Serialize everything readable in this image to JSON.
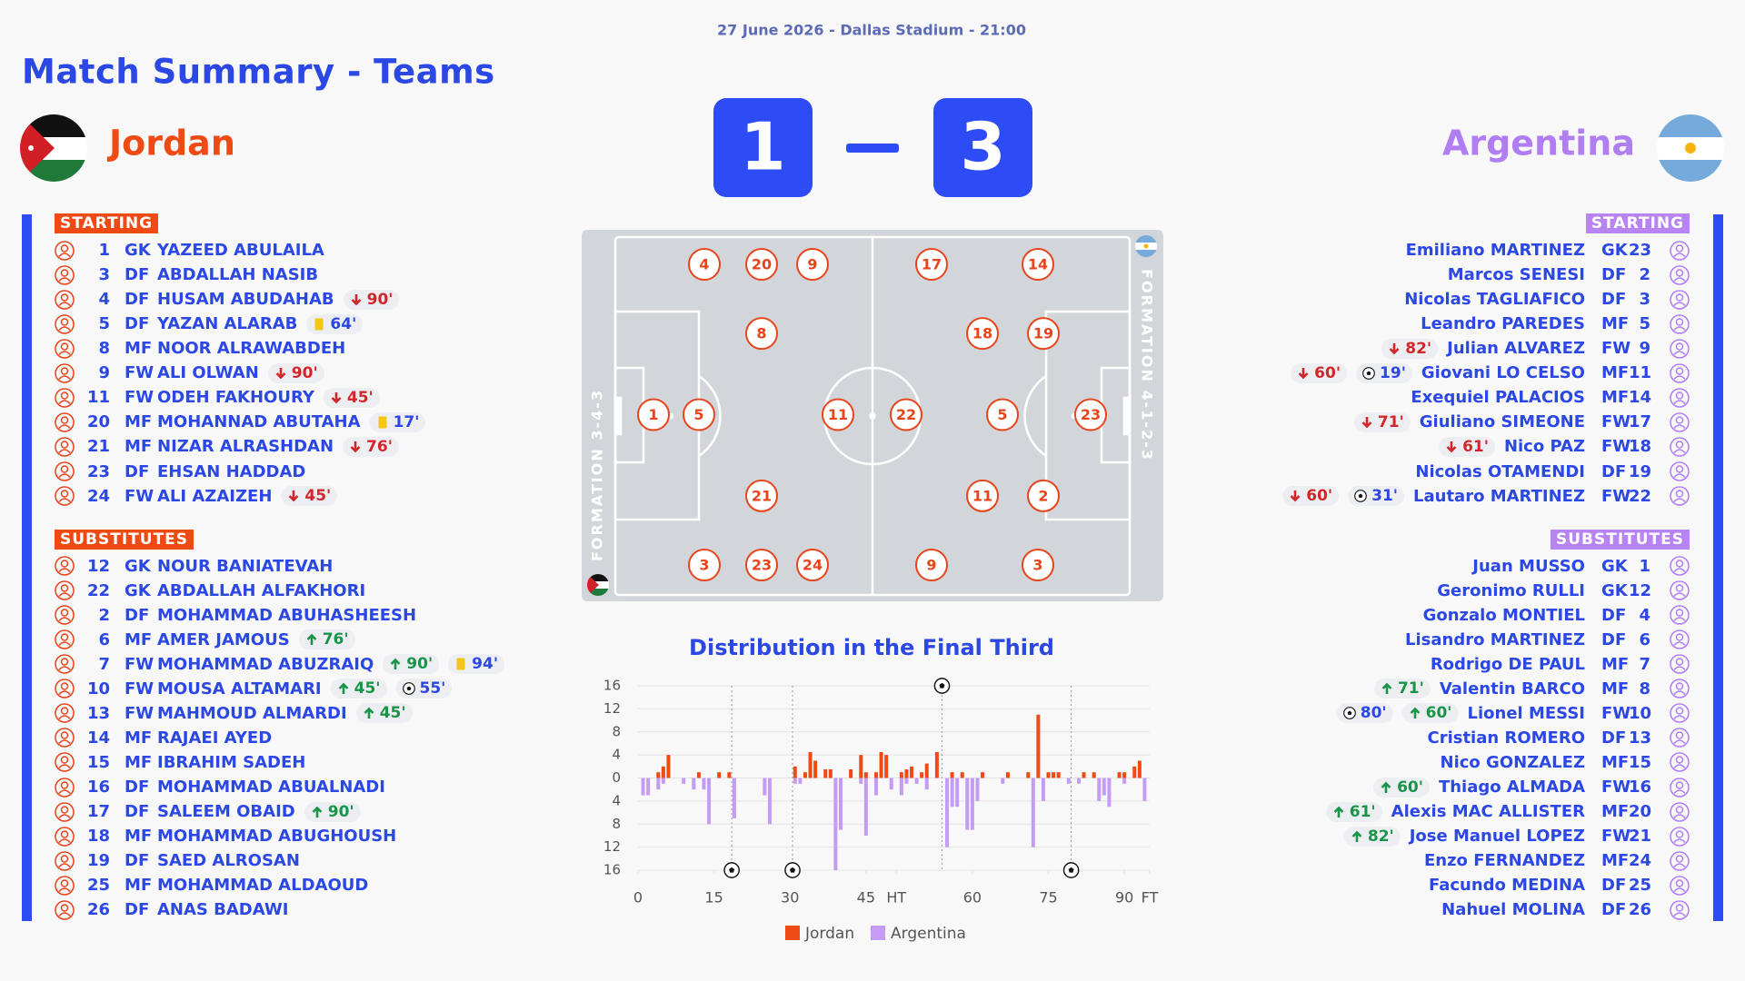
{
  "header": {
    "date_line": "27 June 2026 - Dallas Stadium - 21:00",
    "title": "Match Summary - Teams"
  },
  "home": {
    "name": "Jordan",
    "score": 1,
    "starting_label": "STARTING",
    "substitutes_label": "SUBSTITUTES",
    "formation": "FORMATION 3-4-3",
    "pitch_lines": [
      [
        1
      ],
      [
        4,
        5,
        3
      ],
      [
        20,
        8,
        21,
        23
      ],
      [
        9,
        11,
        24
      ]
    ],
    "starting": [
      {
        "number": 1,
        "pos": "GK",
        "name": "YAZEED ABULAILA"
      },
      {
        "number": 3,
        "pos": "DF",
        "name": "ABDALLAH NASIB"
      },
      {
        "number": 4,
        "pos": "DF",
        "name": "HUSAM ABUDAHAB",
        "events": [
          {
            "type": "out",
            "label": "90'"
          }
        ]
      },
      {
        "number": 5,
        "pos": "DF",
        "name": "YAZAN ALARAB",
        "events": [
          {
            "type": "yellow",
            "label": "64'"
          }
        ]
      },
      {
        "number": 8,
        "pos": "MF",
        "name": "NOOR ALRAWABDEH"
      },
      {
        "number": 9,
        "pos": "FW",
        "name": "ALI OLWAN",
        "events": [
          {
            "type": "out",
            "label": "90'"
          }
        ]
      },
      {
        "number": 11,
        "pos": "FW",
        "name": "ODEH FAKHOURY",
        "events": [
          {
            "type": "out",
            "label": "45'"
          }
        ]
      },
      {
        "number": 20,
        "pos": "MF",
        "name": "MOHANNAD ABUTAHA",
        "events": [
          {
            "type": "yellow",
            "label": "17'"
          }
        ]
      },
      {
        "number": 21,
        "pos": "MF",
        "name": "NIZAR ALRASHDAN",
        "events": [
          {
            "type": "out",
            "label": "76'"
          }
        ]
      },
      {
        "number": 23,
        "pos": "DF",
        "name": "EHSAN HADDAD"
      },
      {
        "number": 24,
        "pos": "FW",
        "name": "ALI AZAIZEH",
        "events": [
          {
            "type": "out",
            "label": "45'"
          }
        ]
      }
    ],
    "substitutes": [
      {
        "number": 12,
        "pos": "GK",
        "name": "NOUR BANIATEVAH"
      },
      {
        "number": 22,
        "pos": "GK",
        "name": "ABDALLAH ALFAKHORI"
      },
      {
        "number": 2,
        "pos": "DF",
        "name": "MOHAMMAD ABUHASHEESH"
      },
      {
        "number": 6,
        "pos": "MF",
        "name": "AMER JAMOUS",
        "events": [
          {
            "type": "in",
            "label": "76'"
          }
        ]
      },
      {
        "number": 7,
        "pos": "FW",
        "name": "MOHAMMAD ABUZRAIQ",
        "events": [
          {
            "type": "in",
            "label": "90'"
          },
          {
            "type": "yellow",
            "label": "94'"
          }
        ]
      },
      {
        "number": 10,
        "pos": "FW",
        "name": "MOUSA ALTAMARI",
        "events": [
          {
            "type": "in",
            "label": "45'"
          },
          {
            "type": "goal",
            "label": "55'"
          }
        ]
      },
      {
        "number": 13,
        "pos": "FW",
        "name": "MAHMOUD ALMARDI",
        "events": [
          {
            "type": "in",
            "label": "45'"
          }
        ]
      },
      {
        "number": 14,
        "pos": "MF",
        "name": "RAJAEI AYED"
      },
      {
        "number": 15,
        "pos": "MF",
        "name": "IBRAHIM SADEH"
      },
      {
        "number": 16,
        "pos": "DF",
        "name": "MOHAMMAD ABUALNADI"
      },
      {
        "number": 17,
        "pos": "DF",
        "name": "SALEEM OBAID",
        "events": [
          {
            "type": "in",
            "label": "90'"
          }
        ]
      },
      {
        "number": 18,
        "pos": "MF",
        "name": "MOHAMMAD ABUGHOUSH"
      },
      {
        "number": 19,
        "pos": "DF",
        "name": "SAED ALROSAN"
      },
      {
        "number": 25,
        "pos": "MF",
        "name": "MOHAMMAD ALDAOUD"
      },
      {
        "number": 26,
        "pos": "DF",
        "name": "ANAS BADAWI"
      }
    ]
  },
  "away": {
    "name": "Argentina",
    "score": 3,
    "starting_label": "STARTING",
    "substitutes_label": "SUBSTITUTES",
    "formation": "FORMATION 4-1-2-3",
    "pitch_lines": [
      [
        23
      ],
      [
        14,
        19,
        2,
        3
      ],
      [
        5
      ],
      [
        18,
        11
      ],
      [
        17,
        22,
        9
      ]
    ],
    "starting": [
      {
        "number": 23,
        "pos": "GK",
        "name": "Emiliano MARTINEZ"
      },
      {
        "number": 2,
        "pos": "DF",
        "name": "Marcos SENESI"
      },
      {
        "number": 3,
        "pos": "DF",
        "name": "Nicolas TAGLIAFICO"
      },
      {
        "number": 5,
        "pos": "MF",
        "name": "Leandro PAREDES"
      },
      {
        "number": 9,
        "pos": "FW",
        "name": "Julian ALVAREZ",
        "events": [
          {
            "type": "out",
            "label": "82'"
          }
        ]
      },
      {
        "number": 11,
        "pos": "MF",
        "name": "Giovani LO CELSO",
        "events": [
          {
            "type": "out",
            "label": "60'"
          },
          {
            "type": "goal",
            "label": "19'"
          }
        ]
      },
      {
        "number": 14,
        "pos": "MF",
        "name": "Exequiel PALACIOS"
      },
      {
        "number": 17,
        "pos": "FW",
        "name": "Giuliano SIMEONE",
        "events": [
          {
            "type": "out",
            "label": "71'"
          }
        ]
      },
      {
        "number": 18,
        "pos": "FW",
        "name": "Nico PAZ",
        "events": [
          {
            "type": "out",
            "label": "61'"
          }
        ]
      },
      {
        "number": 19,
        "pos": "DF",
        "name": "Nicolas OTAMENDI"
      },
      {
        "number": 22,
        "pos": "FW",
        "name": "Lautaro MARTINEZ",
        "events": [
          {
            "type": "out",
            "label": "60'"
          },
          {
            "type": "goal",
            "label": "31'"
          }
        ]
      }
    ],
    "substitutes": [
      {
        "number": 1,
        "pos": "GK",
        "name": "Juan MUSSO"
      },
      {
        "number": 12,
        "pos": "GK",
        "name": "Geronimo RULLI"
      },
      {
        "number": 4,
        "pos": "DF",
        "name": "Gonzalo MONTIEL"
      },
      {
        "number": 6,
        "pos": "DF",
        "name": "Lisandro MARTINEZ"
      },
      {
        "number": 7,
        "pos": "MF",
        "name": "Rodrigo DE PAUL"
      },
      {
        "number": 8,
        "pos": "MF",
        "name": "Valentin BARCO",
        "events": [
          {
            "type": "in",
            "label": "71'"
          }
        ]
      },
      {
        "number": 10,
        "pos": "FW",
        "name": "Lionel MESSI",
        "events": [
          {
            "type": "goal",
            "label": "80'"
          },
          {
            "type": "in",
            "label": "60'"
          }
        ]
      },
      {
        "number": 13,
        "pos": "DF",
        "name": "Cristian ROMERO"
      },
      {
        "number": 15,
        "pos": "MF",
        "name": "Nico GONZALEZ"
      },
      {
        "number": 16,
        "pos": "FW",
        "name": "Thiago ALMADA",
        "events": [
          {
            "type": "in",
            "label": "60'"
          }
        ]
      },
      {
        "number": 20,
        "pos": "MF",
        "name": "Alexis MAC ALLISTER",
        "events": [
          {
            "type": "in",
            "label": "61'"
          }
        ]
      },
      {
        "number": 21,
        "pos": "FW",
        "name": "Jose Manuel LOPEZ",
        "events": [
          {
            "type": "in",
            "label": "82'"
          }
        ]
      },
      {
        "number": 24,
        "pos": "MF",
        "name": "Enzo FERNANDEZ"
      },
      {
        "number": 25,
        "pos": "DF",
        "name": "Facundo MEDINA"
      },
      {
        "number": 26,
        "pos": "DF",
        "name": "Nahuel MOLINA"
      }
    ]
  },
  "chart_data": {
    "type": "bar",
    "title": "Distribution in the Final Third",
    "xlim": [
      0,
      101
    ],
    "xticks": [
      0,
      15,
      30,
      45,
      {
        "value": 51,
        "label": "HT"
      },
      {
        "value": 66,
        "label": "60"
      },
      {
        "value": 81,
        "label": "75"
      },
      {
        "value": 96,
        "label": "90"
      },
      {
        "value": 101,
        "label": "FT"
      }
    ],
    "ylim": [
      -16,
      16
    ],
    "yticks": [
      {
        "value": -16,
        "label": "16"
      },
      {
        "value": -12,
        "label": "12"
      },
      {
        "value": -8,
        "label": "8"
      },
      {
        "value": -4,
        "label": "4"
      },
      0,
      4,
      8,
      12,
      16
    ],
    "grid": true,
    "series": [
      {
        "name": "Jordan",
        "color": "#f04a14",
        "x": [
          4,
          5,
          6,
          12,
          16,
          18,
          31,
          33,
          34,
          35,
          37,
          38,
          42,
          44,
          45,
          47,
          48,
          49,
          52,
          53,
          54,
          56,
          57,
          59,
          62,
          64,
          68,
          73,
          77,
          79,
          81,
          82,
          83,
          88,
          90,
          95,
          96,
          98,
          99
        ],
        "values": [
          1,
          2,
          4,
          1,
          1,
          1,
          2,
          1,
          4.5,
          3,
          1.5,
          1.5,
          1.5,
          4,
          1,
          1,
          4.5,
          4,
          1,
          1.5,
          2,
          1,
          2.5,
          4.5,
          1,
          1,
          1,
          1,
          1,
          11,
          1,
          1,
          1,
          1,
          1,
          1,
          1,
          2,
          3
        ],
        "goals_x": [
          60
        ]
      },
      {
        "name": "Argentina",
        "color": "#c49cf3",
        "x": [
          1,
          2,
          4,
          5,
          9,
          11,
          13,
          14,
          19,
          25,
          26,
          31,
          32,
          39,
          40,
          44,
          45,
          47,
          50,
          52,
          53,
          55,
          57,
          61,
          62,
          63,
          65,
          66,
          67,
          72,
          78,
          80,
          85,
          87,
          91,
          92,
          93,
          96,
          100
        ],
        "values": [
          -3,
          -3,
          -2,
          -1,
          -1,
          -2,
          -2,
          -8,
          -7,
          -3,
          -8,
          -1,
          -1,
          -16,
          -9,
          -1,
          -10,
          -3,
          -2,
          -3,
          -1,
          -1,
          -2,
          -12,
          -5,
          -5,
          -9,
          -9,
          -4,
          -1,
          -12,
          -4,
          -1,
          -1,
          -4,
          -3,
          -5,
          -1,
          -4
        ],
        "goals_x": [
          18.5,
          30.5,
          85.5
        ]
      }
    ]
  }
}
